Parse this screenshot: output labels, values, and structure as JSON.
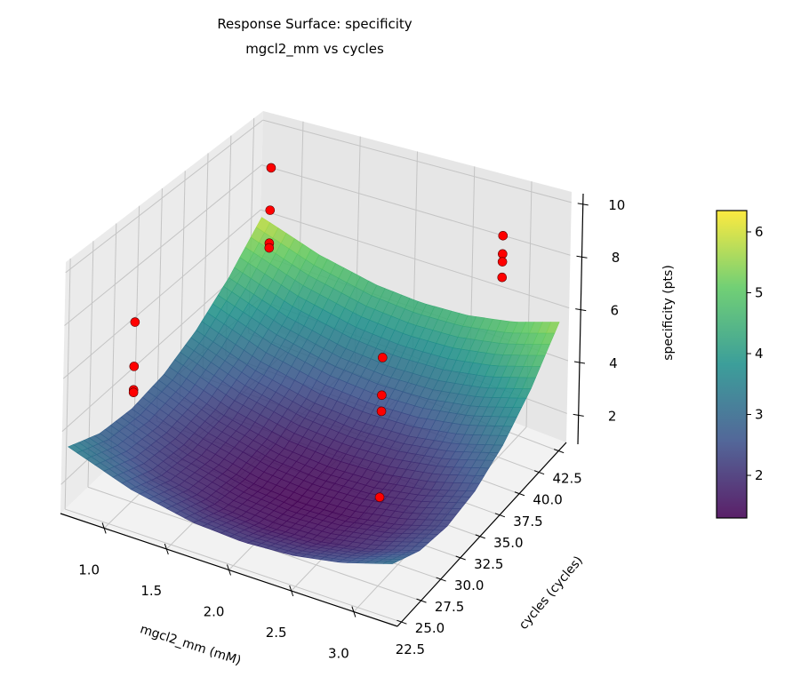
{
  "chart_data": {
    "type": "surface",
    "title": [
      "Response Surface: specificity",
      "mgcl2_mm vs cycles"
    ],
    "xlabel": "mgcl2_mm (mM)",
    "ylabel": "cycles (cycles)",
    "zlabel": "specificity (pts)",
    "xlim": [
      0.65,
      3.35
    ],
    "ylim": [
      22,
      43.5
    ],
    "zlim": [
      0.9,
      10.4
    ],
    "xticks": [
      "1.0",
      "1.5",
      "2.0",
      "2.5",
      "3.0"
    ],
    "yticks": [
      "22.5",
      "25.0",
      "27.5",
      "30.0",
      "32.5",
      "35.0",
      "37.5",
      "40.0",
      "42.5"
    ],
    "zticks": [
      "2",
      "4",
      "6",
      "8",
      "10"
    ],
    "grid": true,
    "colormap": "viridis",
    "colorbar": {
      "range": [
        1.3,
        6.35
      ],
      "ticks": [
        "2",
        "3",
        "4",
        "5",
        "6"
      ]
    },
    "surface": {
      "x": [
        0.7,
        1.2,
        1.7,
        2.1,
        2.5,
        2.9,
        3.3
      ],
      "y": [
        22,
        25.5,
        29,
        32.5,
        36,
        39.5,
        43
      ],
      "z": [
        [
          3.5,
          2.69,
          2.22,
          2.11,
          2.22,
          2.56,
          3.13
        ],
        [
          2.89,
          2.08,
          1.61,
          1.5,
          1.61,
          1.95,
          2.52
        ],
        [
          2.69,
          1.88,
          1.41,
          1.3,
          1.41,
          1.75,
          2.32
        ],
        [
          2.89,
          2.08,
          1.61,
          1.5,
          1.61,
          1.95,
          2.52
        ],
        [
          3.5,
          2.69,
          2.22,
          2.11,
          2.22,
          2.56,
          3.13
        ],
        [
          4.51,
          3.7,
          3.23,
          3.12,
          3.23,
          3.57,
          4.14
        ],
        [
          5.92,
          5.11,
          4.64,
          4.53,
          4.64,
          4.98,
          5.55
        ]
      ]
    },
    "scatter": {
      "color": "#ff0000",
      "points": [
        {
          "x": 1.0,
          "y": 25,
          "z": 7.8
        },
        {
          "x": 1.0,
          "y": 25,
          "z": 6.1
        },
        {
          "x": 1.0,
          "y": 25,
          "z": 5.2
        },
        {
          "x": 1.0,
          "y": 25,
          "z": 5.1
        },
        {
          "x": 1.0,
          "y": 40,
          "z": 9.5
        },
        {
          "x": 1.0,
          "y": 40,
          "z": 7.7
        },
        {
          "x": 1.0,
          "y": 40,
          "z": 6.3
        },
        {
          "x": 1.0,
          "y": 40,
          "z": 6.1
        },
        {
          "x": 3.0,
          "y": 40,
          "z": 9.4
        },
        {
          "x": 3.0,
          "y": 40,
          "z": 8.7
        },
        {
          "x": 3.0,
          "y": 40,
          "z": 8.4
        },
        {
          "x": 3.0,
          "y": 40,
          "z": 7.8
        },
        {
          "x": 3.0,
          "y": 25,
          "z": 9.4
        },
        {
          "x": 3.0,
          "y": 25,
          "z": 8.0
        },
        {
          "x": 3.0,
          "y": 25,
          "z": 7.4
        },
        {
          "x": 3.0,
          "y": 25,
          "z": 4.2
        }
      ]
    }
  }
}
